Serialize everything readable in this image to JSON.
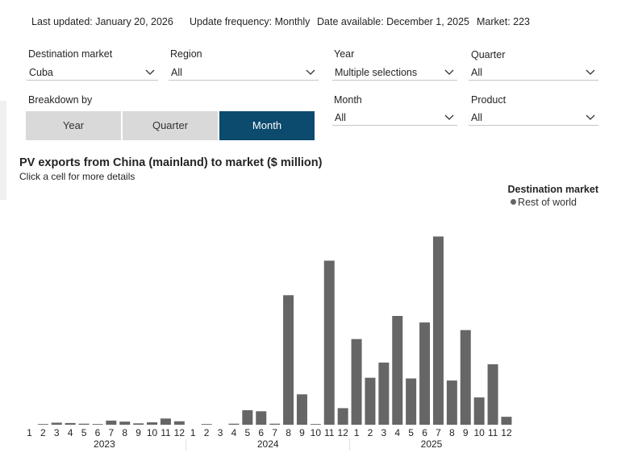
{
  "header": {
    "last_updated": "Last updated: January 20, 2026",
    "update_frequency": "Update frequency: Monthly",
    "date_available": "Date available: December 1, 2025",
    "market": "Market: 223"
  },
  "filters": {
    "destination_market": {
      "label": "Destination market",
      "value": "Cuba"
    },
    "region": {
      "label": "Region",
      "value": "All"
    },
    "year": {
      "label": "Year",
      "value": "Multiple selections"
    },
    "quarter": {
      "label": "Quarter",
      "value": "All"
    },
    "month": {
      "label": "Month",
      "value": "All"
    },
    "product": {
      "label": "Product",
      "value": "All"
    }
  },
  "breakdown": {
    "label": "Breakdown by",
    "options": [
      "Year",
      "Quarter",
      "Month"
    ],
    "selected": "Month"
  },
  "colors": {
    "accent": "#0c4a6e",
    "bar": "#666666",
    "segment": "#d9d9d9"
  },
  "chart_data": {
    "type": "bar",
    "title": "PV exports from China (mainland) to market ($ million)",
    "subtitle": "Click a cell for more details",
    "legend_title": "Destination market",
    "legend_position": "top-right",
    "grid": false,
    "years": [
      "2023",
      "2024",
      "2025"
    ],
    "months": [
      "1",
      "2",
      "3",
      "4",
      "5",
      "6",
      "7",
      "8",
      "9",
      "10",
      "11",
      "12"
    ],
    "series": [
      {
        "name": "Rest of world",
        "values": [
          0,
          0.2,
          0.6,
          0.5,
          0.3,
          0.2,
          1.2,
          0.9,
          0.4,
          0.7,
          1.8,
          1.0,
          0,
          0.2,
          0,
          0.3,
          4.2,
          3.9,
          0.3,
          37.5,
          8.8,
          0.2,
          47.5,
          4.8,
          24.8,
          13.6,
          18.0,
          31.5,
          13.4,
          29.6,
          54.5,
          12.8,
          27.4,
          7.9,
          17.5,
          2.3
        ]
      }
    ],
    "ylim": [
      0,
      56
    ]
  }
}
